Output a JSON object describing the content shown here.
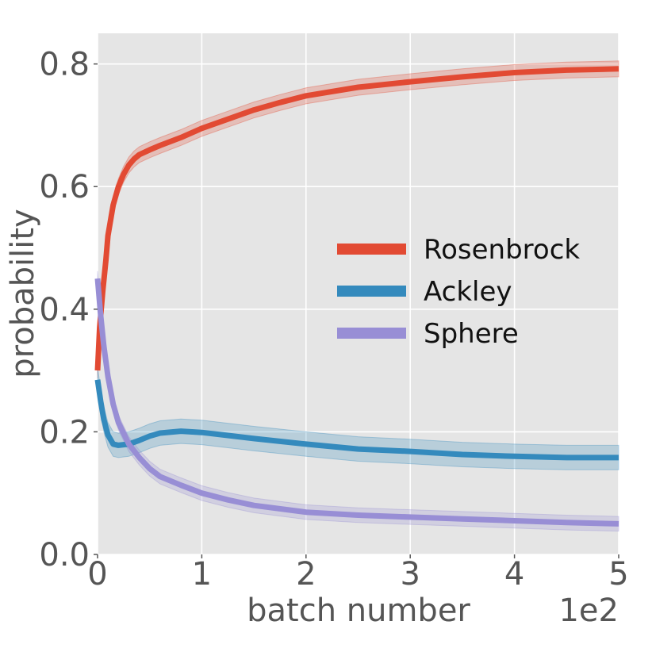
{
  "chart_data": {
    "type": "line",
    "title": "",
    "xlabel": "batch number",
    "ylabel": "probability",
    "x_offset_text": "1e2",
    "xlim": [
      0,
      5
    ],
    "ylim": [
      0,
      0.85
    ],
    "xticks": [
      0,
      1,
      2,
      3,
      4,
      5
    ],
    "xtick_labels": [
      "0",
      "1",
      "2",
      "3",
      "4",
      "5"
    ],
    "yticks": [
      0.0,
      0.2,
      0.4,
      0.6,
      0.8
    ],
    "ytick_labels": [
      "0.0",
      "0.2",
      "0.4",
      "0.6",
      "0.8"
    ],
    "grid": true,
    "legend_position": "center-right",
    "series": [
      {
        "name": "Rosenbrock",
        "color": "#E24A33",
        "x": [
          0,
          0.02,
          0.05,
          0.08,
          0.1,
          0.15,
          0.2,
          0.25,
          0.3,
          0.35,
          0.4,
          0.5,
          0.6,
          0.8,
          1.0,
          1.25,
          1.5,
          1.75,
          2.0,
          2.5,
          3.0,
          3.5,
          4.0,
          4.5,
          5.0
        ],
        "values": [
          0.3,
          0.37,
          0.43,
          0.48,
          0.52,
          0.57,
          0.6,
          0.62,
          0.635,
          0.645,
          0.652,
          0.66,
          0.667,
          0.68,
          0.695,
          0.71,
          0.725,
          0.737,
          0.748,
          0.762,
          0.771,
          0.779,
          0.786,
          0.79,
          0.792
        ],
        "band": 0.013
      },
      {
        "name": "Ackley",
        "color": "#348ABD",
        "x": [
          0,
          0.03,
          0.06,
          0.1,
          0.15,
          0.2,
          0.3,
          0.4,
          0.5,
          0.6,
          0.8,
          1.0,
          1.25,
          1.5,
          2.0,
          2.5,
          3.0,
          3.5,
          4.0,
          4.5,
          5.0
        ],
        "values": [
          0.285,
          0.25,
          0.22,
          0.195,
          0.18,
          0.178,
          0.18,
          0.186,
          0.193,
          0.198,
          0.201,
          0.199,
          0.194,
          0.189,
          0.18,
          0.172,
          0.168,
          0.163,
          0.16,
          0.158,
          0.158
        ],
        "band": 0.02
      },
      {
        "name": "Sphere",
        "color": "#988ED5",
        "x": [
          0,
          0.03,
          0.06,
          0.1,
          0.15,
          0.2,
          0.3,
          0.4,
          0.5,
          0.6,
          0.8,
          1.0,
          1.25,
          1.5,
          2.0,
          2.5,
          3.0,
          3.5,
          4.0,
          4.5,
          5.0
        ],
        "values": [
          0.45,
          0.39,
          0.34,
          0.29,
          0.245,
          0.215,
          0.18,
          0.158,
          0.14,
          0.127,
          0.113,
          0.1,
          0.089,
          0.08,
          0.069,
          0.064,
          0.061,
          0.058,
          0.055,
          0.052,
          0.05
        ],
        "band": 0.012
      }
    ]
  }
}
